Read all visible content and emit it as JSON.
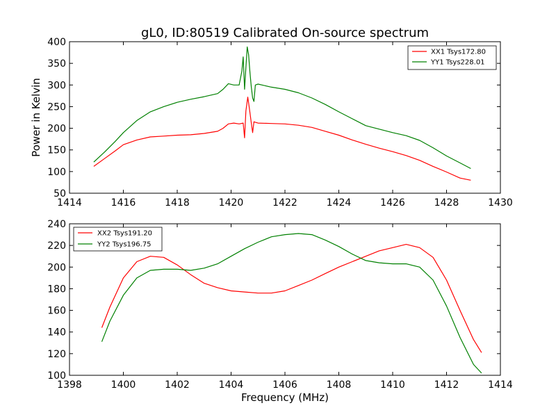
{
  "title": "gL0, ID:80519 Calibrated On-source spectrum",
  "chart_data": [
    {
      "type": "line",
      "xlim": [
        1414,
        1430
      ],
      "ylim": [
        50,
        400
      ],
      "xticks": [
        "1414",
        "1416",
        "1418",
        "1420",
        "1422",
        "1424",
        "1426",
        "1428",
        "1430"
      ],
      "yticks": [
        "50",
        "100",
        "150",
        "200",
        "250",
        "300",
        "350",
        "400"
      ],
      "ylabel": "Power in Kelvin",
      "xlabel": "",
      "legend_position": "top-right",
      "grid": false,
      "series": [
        {
          "name": "XX1 Tsys172.80",
          "color": "#ff0000",
          "x": [
            1414.9,
            1415.3,
            1415.7,
            1416.0,
            1416.5,
            1417.0,
            1417.5,
            1418.0,
            1418.5,
            1419.0,
            1419.5,
            1419.7,
            1419.9,
            1420.1,
            1420.3,
            1420.45,
            1420.5,
            1420.55,
            1420.62,
            1420.68,
            1420.75,
            1420.8,
            1420.85,
            1420.9,
            1421.0,
            1421.5,
            1422.0,
            1422.5,
            1423.0,
            1423.5,
            1424.0,
            1424.5,
            1425.0,
            1425.5,
            1426.0,
            1426.5,
            1427.0,
            1427.5,
            1428.0,
            1428.5,
            1428.9
          ],
          "y": [
            112,
            130,
            148,
            162,
            173,
            180,
            182,
            184,
            185,
            188,
            193,
            200,
            210,
            212,
            210,
            212,
            178,
            240,
            272,
            245,
            212,
            190,
            215,
            214,
            212,
            211,
            210,
            207,
            202,
            193,
            184,
            173,
            163,
            154,
            146,
            137,
            126,
            112,
            99,
            85,
            80
          ]
        },
        {
          "name": "YY1 Tsys228.01",
          "color": "#008000",
          "x": [
            1414.9,
            1415.3,
            1415.7,
            1416.0,
            1416.5,
            1417.0,
            1417.5,
            1418.0,
            1418.5,
            1419.0,
            1419.5,
            1419.7,
            1419.9,
            1420.1,
            1420.3,
            1420.4,
            1420.45,
            1420.5,
            1420.55,
            1420.6,
            1420.65,
            1420.7,
            1420.75,
            1420.8,
            1420.85,
            1420.9,
            1421.0,
            1421.5,
            1422.0,
            1422.5,
            1423.0,
            1423.5,
            1424.0,
            1424.5,
            1425.0,
            1425.5,
            1426.0,
            1426.5,
            1427.0,
            1427.5,
            1428.0,
            1428.5,
            1428.9
          ],
          "y": [
            122,
            145,
            170,
            190,
            218,
            238,
            250,
            260,
            267,
            273,
            280,
            290,
            303,
            300,
            300,
            332,
            365,
            290,
            340,
            388,
            370,
            330,
            295,
            270,
            262,
            300,
            302,
            295,
            290,
            282,
            270,
            255,
            238,
            222,
            206,
            198,
            190,
            183,
            172,
            155,
            136,
            120,
            107
          ]
        }
      ]
    },
    {
      "type": "line",
      "xlim": [
        1398,
        1414
      ],
      "ylim": [
        100,
        240
      ],
      "xticks": [
        "1398",
        "1400",
        "1402",
        "1404",
        "1406",
        "1408",
        "1410",
        "1412",
        "1414"
      ],
      "yticks": [
        "100",
        "120",
        "140",
        "160",
        "180",
        "200",
        "220",
        "240"
      ],
      "xlabel": "Frequency (MHz)",
      "ylabel": "",
      "legend_position": "top-left",
      "grid": false,
      "series": [
        {
          "name": "XX2 Tsys191.20",
          "color": "#ff0000",
          "x": [
            1399.2,
            1399.5,
            1400.0,
            1400.5,
            1401.0,
            1401.5,
            1402.0,
            1402.5,
            1403.0,
            1403.5,
            1404.0,
            1404.5,
            1405.0,
            1405.5,
            1406.0,
            1406.5,
            1407.0,
            1407.5,
            1408.0,
            1408.5,
            1409.0,
            1409.5,
            1410.0,
            1410.5,
            1411.0,
            1411.5,
            1412.0,
            1412.5,
            1413.0,
            1413.3
          ],
          "y": [
            144,
            163,
            190,
            205,
            210,
            209,
            202,
            193,
            185,
            181,
            178,
            177,
            176,
            176,
            178,
            183,
            188,
            194,
            200,
            205,
            210,
            215,
            218,
            221,
            218,
            209,
            188,
            160,
            133,
            121
          ]
        },
        {
          "name": "YY2 Tsys196.75",
          "color": "#008000",
          "x": [
            1399.2,
            1399.5,
            1400.0,
            1400.5,
            1401.0,
            1401.5,
            1402.0,
            1402.5,
            1403.0,
            1403.5,
            1404.0,
            1404.5,
            1405.0,
            1405.5,
            1406.0,
            1406.5,
            1407.0,
            1407.5,
            1408.0,
            1408.5,
            1409.0,
            1409.5,
            1410.0,
            1410.5,
            1411.0,
            1411.5,
            1412.0,
            1412.5,
            1413.0,
            1413.3
          ],
          "y": [
            131,
            150,
            174,
            190,
            197,
            198,
            198,
            197,
            199,
            203,
            210,
            217,
            223,
            228,
            230,
            231,
            230,
            225,
            219,
            212,
            206,
            204,
            203,
            203,
            200,
            188,
            164,
            135,
            110,
            102
          ]
        }
      ]
    }
  ]
}
